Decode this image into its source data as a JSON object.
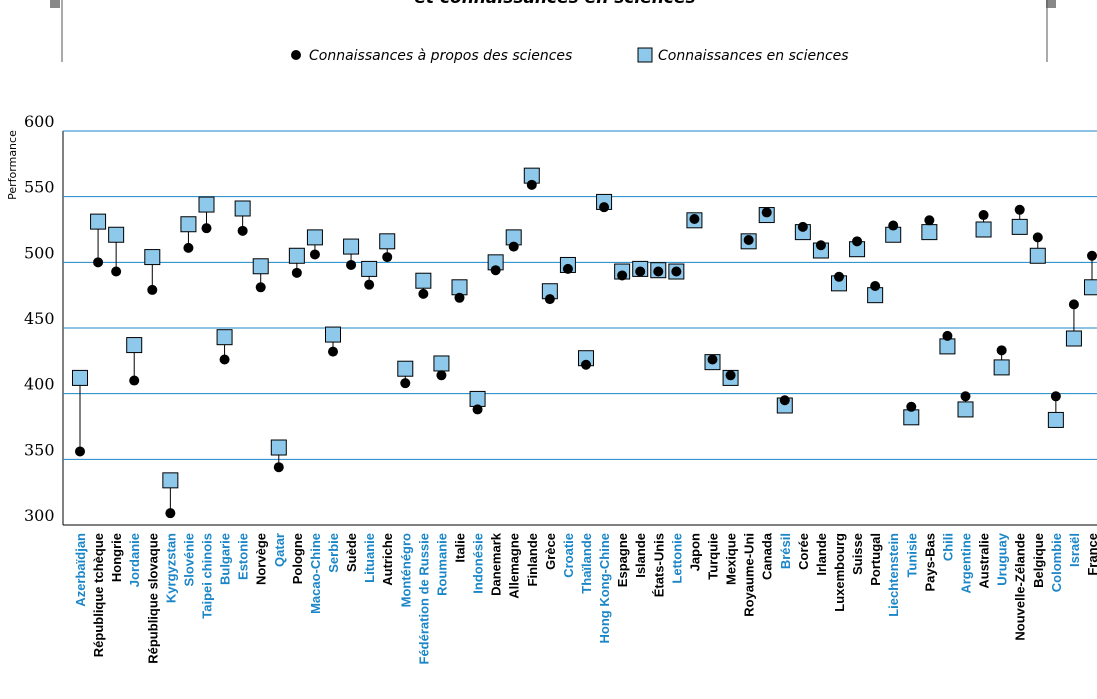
{
  "chart_data": {
    "type": "dot-square",
    "title": "et connaissances en sciences",
    "y_label": "Performance",
    "categories": [
      "Azerbaïdjan",
      "République tchèque",
      "Hongrie",
      "Jordanie",
      "République slovaque",
      "Kyrgyzstan",
      "Slovénie",
      "Taipei chinois",
      "Bulgarie",
      "Estonie",
      "Norvège",
      "Qatar",
      "Pologne",
      "Macao-Chine",
      "Serbie",
      "Suède",
      "Lituanie",
      "Autriche",
      "Monténégro",
      "Fédération de Russie",
      "Roumanie",
      "Italie",
      "Indonésie",
      "Danemark",
      "Allemagne",
      "Finlande",
      "Grèce",
      "Croatie",
      "Thaïlande",
      "Hong Kong-Chine",
      "Espagne",
      "Islande",
      "États-Unis",
      "Lettonie",
      "Japon",
      "Turquie",
      "Mexique",
      "Royaume-Uni",
      "Canada",
      "Brésil",
      "Corée",
      "Irlande",
      "Luxembourg",
      "Suisse",
      "Portugal",
      "Liechtenstein",
      "Tunisie",
      "Pays-Bas",
      "Chili",
      "Argentine",
      "Australie",
      "Uruguay",
      "Nouvelle-Zélande",
      "Belgique",
      "Colombie",
      "Israël",
      "France"
    ],
    "category_colors": [
      "#1a86c8",
      "#000000",
      "#000000",
      "#1a86c8",
      "#000000",
      "#1a86c8",
      "#1a86c8",
      "#1a86c8",
      "#1a86c8",
      "#1a86c8",
      "#000000",
      "#1a86c8",
      "#000000",
      "#1a86c8",
      "#1a86c8",
      "#000000",
      "#1a86c8",
      "#000000",
      "#1a86c8",
      "#1a86c8",
      "#1a86c8",
      "#000000",
      "#1a86c8",
      "#000000",
      "#000000",
      "#000000",
      "#000000",
      "#1a86c8",
      "#1a86c8",
      "#1a86c8",
      "#000000",
      "#000000",
      "#000000",
      "#1a86c8",
      "#000000",
      "#000000",
      "#000000",
      "#000000",
      "#000000",
      "#1a86c8",
      "#000000",
      "#000000",
      "#000000",
      "#000000",
      "#000000",
      "#1a86c8",
      "#1a86c8",
      "#000000",
      "#1a86c8",
      "#1a86c8",
      "#000000",
      "#1a86c8",
      "#000000",
      "#000000",
      "#1a86c8",
      "#1a86c8",
      "#000000"
    ],
    "series": [
      {
        "name": "Connaissances à propos des sciences",
        "color": "#000000",
        "marker": "circle",
        "values": [
          356,
          500,
          493,
          410,
          479,
          309,
          511,
          526,
          426,
          524,
          481,
          344,
          492,
          506,
          432,
          498,
          483,
          504,
          408,
          476,
          414,
          473,
          388,
          494,
          512,
          559,
          472,
          495,
          422,
          542,
          490,
          493,
          493,
          493,
          533,
          426,
          414,
          517,
          538,
          395,
          527,
          513,
          489,
          516,
          482,
          528,
          390,
          532,
          444,
          398,
          536,
          433,
          540,
          519,
          398,
          468,
          505
        ]
      },
      {
        "name": "Connaissances en sciences",
        "color": "#8ec8ea",
        "marker": "square",
        "values": [
          412,
          531,
          521,
          437,
          504,
          334,
          529,
          544,
          443,
          541,
          497,
          359,
          505,
          519,
          445,
          512,
          495,
          516,
          419,
          486,
          423,
          481,
          396,
          500,
          519,
          566,
          478,
          498,
          427,
          546,
          493,
          495,
          494,
          493,
          532,
          424,
          412,
          516,
          536,
          391,
          523,
          509,
          484,
          510,
          475,
          521,
          382,
          523,
          436,
          388,
          525,
          420,
          527,
          505,
          380,
          442,
          481
        ]
      }
    ],
    "ylim": [
      300,
      600
    ],
    "yticks": [
      300,
      350,
      400,
      450,
      500,
      550,
      600
    ],
    "grid": true,
    "grid_color": "#1a86c8"
  }
}
